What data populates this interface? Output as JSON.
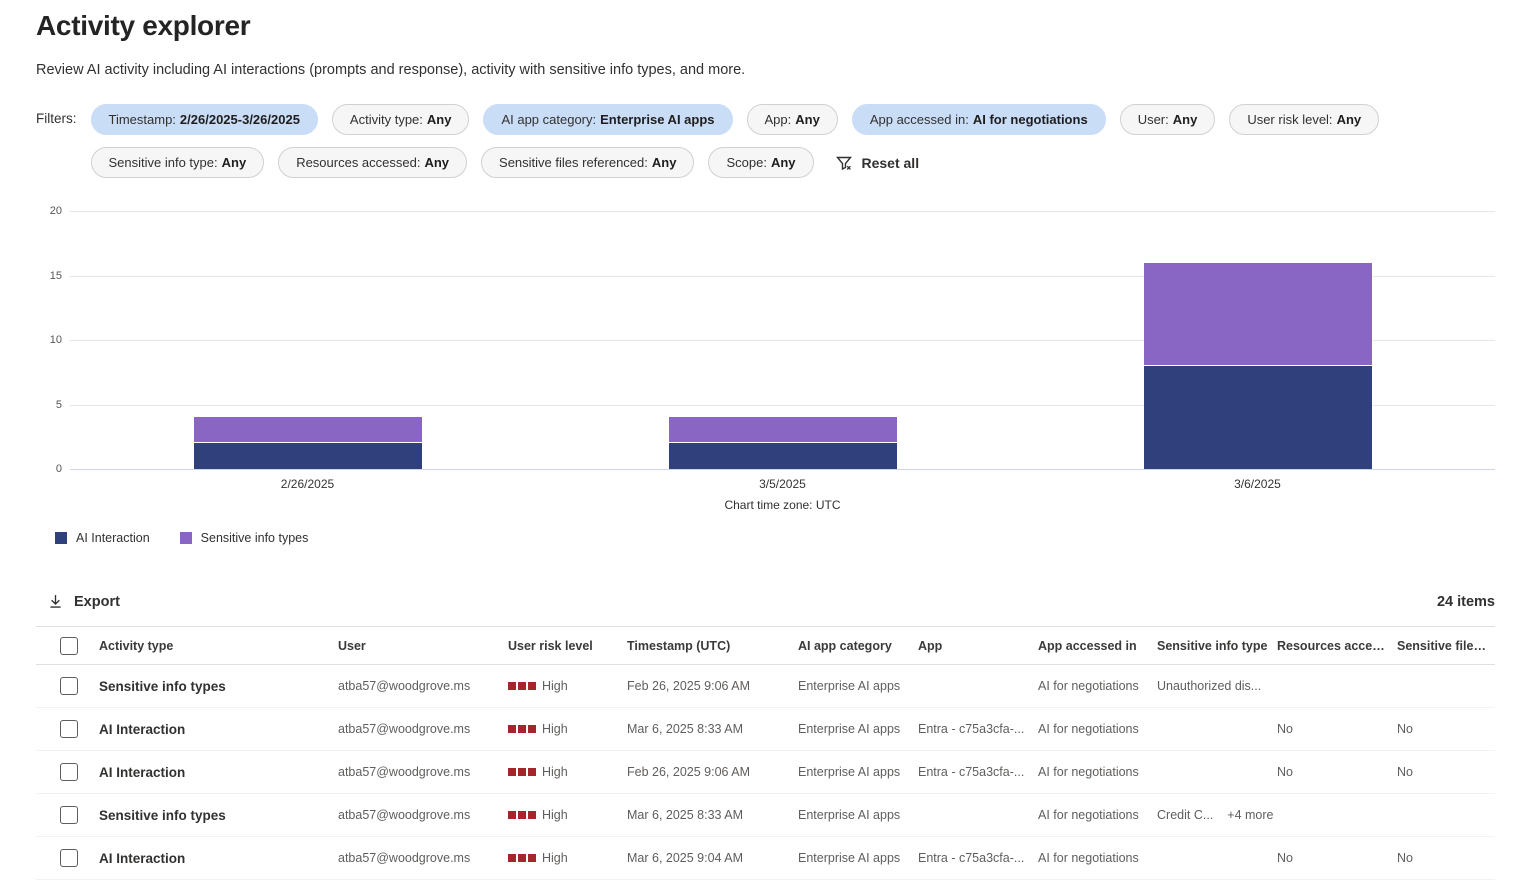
{
  "page": {
    "title": "Activity explorer",
    "subtitle": "Review AI activity including AI interactions (prompts and response), activity with sensitive info types, and more."
  },
  "filters": {
    "label": "Filters:",
    "reset_label": "Reset all",
    "active_color": "#c9ddf6",
    "pills": [
      {
        "name": "Timestamp",
        "value": "2/26/2025-3/26/2025",
        "active": true
      },
      {
        "name": "Activity type",
        "value": "Any",
        "active": false
      },
      {
        "name": "AI app category",
        "value": "Enterprise AI apps",
        "active": true
      },
      {
        "name": "App",
        "value": "Any",
        "active": false
      },
      {
        "name": "App accessed in",
        "value": "AI for negotiations",
        "active": true
      },
      {
        "name": "User",
        "value": "Any",
        "active": false
      },
      {
        "name": "User risk level",
        "value": "Any",
        "active": false
      },
      {
        "name": "Sensitive info type",
        "value": "Any",
        "active": false
      },
      {
        "name": "Resources accessed",
        "value": "Any",
        "active": false
      },
      {
        "name": "Sensitive files referenced",
        "value": "Any",
        "active": false
      },
      {
        "name": "Scope",
        "value": "Any",
        "active": false
      }
    ]
  },
  "chart_data": {
    "type": "bar",
    "stacked": true,
    "categories": [
      "2/26/2025",
      "3/5/2025",
      "3/6/2025"
    ],
    "series": [
      {
        "name": "AI Interaction",
        "color": "#30407c",
        "values": [
          2,
          2,
          8
        ]
      },
      {
        "name": "Sensitive info types",
        "color": "#8966c4",
        "values": [
          2,
          2,
          8
        ]
      }
    ],
    "ylim": [
      0,
      20
    ],
    "yticks": [
      0,
      5,
      10,
      15,
      20
    ],
    "grid": true,
    "legend_position": "bottom-left",
    "footnote": "Chart time zone: UTC"
  },
  "toolbar": {
    "export_label": "Export",
    "items_count": "24 items"
  },
  "table": {
    "columns": [
      "Activity type",
      "User",
      "User risk level",
      "Timestamp (UTC)",
      "AI app category",
      "App",
      "App accessed in",
      "Sensitive info type",
      "Resources access...",
      "Sensitive files ref..."
    ],
    "risk_color": "#a4262c",
    "rows": [
      {
        "activity_type": "Sensitive info types",
        "user": "atba57@woodgrove.ms",
        "risk": "High",
        "timestamp": "Feb 26, 2025 9:06 AM",
        "category": "Enterprise AI apps",
        "app": "",
        "accessed_in": "AI for negotiations",
        "sensitive_info": "Unauthorized dis...",
        "sensitive_more": "",
        "resources": "",
        "files": ""
      },
      {
        "activity_type": "AI Interaction",
        "user": "atba57@woodgrove.ms",
        "risk": "High",
        "timestamp": "Mar 6, 2025 8:33 AM",
        "category": "Enterprise AI apps",
        "app": "Entra - c75a3cfa-...",
        "accessed_in": "AI for negotiations",
        "sensitive_info": "",
        "sensitive_more": "",
        "resources": "No",
        "files": "No"
      },
      {
        "activity_type": "AI Interaction",
        "user": "atba57@woodgrove.ms",
        "risk": "High",
        "timestamp": "Feb 26, 2025 9:06 AM",
        "category": "Enterprise AI apps",
        "app": "Entra - c75a3cfa-...",
        "accessed_in": "AI for negotiations",
        "sensitive_info": "",
        "sensitive_more": "",
        "resources": "No",
        "files": "No"
      },
      {
        "activity_type": "Sensitive info types",
        "user": "atba57@woodgrove.ms",
        "risk": "High",
        "timestamp": "Mar 6, 2025 8:33 AM",
        "category": "Enterprise AI apps",
        "app": "",
        "accessed_in": "AI for negotiations",
        "sensitive_info": "Credit C...",
        "sensitive_more": "+4 more",
        "resources": "",
        "files": ""
      },
      {
        "activity_type": "AI Interaction",
        "user": "atba57@woodgrove.ms",
        "risk": "High",
        "timestamp": "Mar 6, 2025 9:04 AM",
        "category": "Enterprise AI apps",
        "app": "Entra - c75a3cfa-...",
        "accessed_in": "AI for negotiations",
        "sensitive_info": "",
        "sensitive_more": "",
        "resources": "No",
        "files": "No"
      }
    ]
  }
}
